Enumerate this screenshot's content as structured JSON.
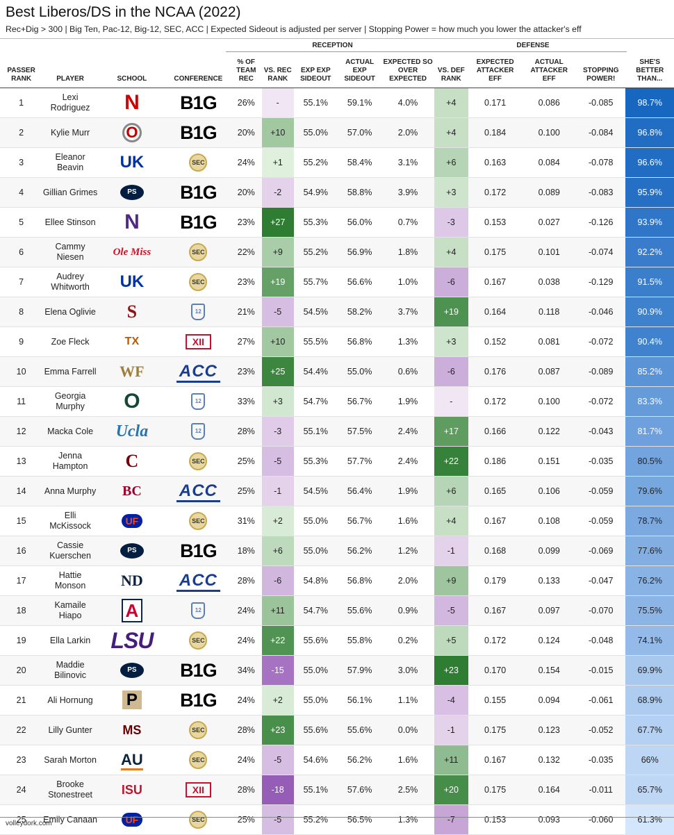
{
  "title": "Best Liberos/DS in the NCAA (2022)",
  "subtitle": "Rec+Dig > 300 | Big Ten, Pac-12, Big-12, SEC, ACC | Expected Sideout is adjusted per server | Stopping Power = how much you lower the attacker's eff",
  "footer": "volleydork.com",
  "groups": {
    "reception": "RECEPTION",
    "defense": "DEFENSE"
  },
  "colors": {
    "green_dark": "#2e7d32",
    "purple_dark": "#6a1b9a",
    "blue_dark": "#1565c0",
    "blue_light": "#dbeafe"
  },
  "chart_data": {
    "type": "table",
    "columns": [
      "PASSER RANK",
      "PLAYER",
      "SCHOOL",
      "CONFERENCE",
      "% OF TEAM REC",
      "VS. REC RANK",
      "EXP EXP SIDEOUT",
      "ACTUAL EXP SIDEOUT",
      "EXPECTED SO OVER EXPECTED",
      "VS. DEF RANK",
      "EXPECTED ATTACKER EFF",
      "ACTUAL ATTACKER EFF",
      "STOPPING POWER!",
      "SHE'S BETTER THAN..."
    ],
    "rows": [
      {
        "rank": "1",
        "player": "Lexi Rodriguez",
        "school": "nebraska-logo",
        "conf": "big10",
        "pct": "26%",
        "vsrec": "-",
        "expexp": "55.1%",
        "actexp": "59.1%",
        "soe": "4.0%",
        "vsdef": "+4",
        "expatt": "0.171",
        "actatt": "0.086",
        "stop": "-0.085",
        "better": "98.7%"
      },
      {
        "rank": "2",
        "player": "Kylie Murr",
        "school": "ohio-state-logo",
        "conf": "big10",
        "pct": "20%",
        "vsrec": "+10",
        "expexp": "55.0%",
        "actexp": "57.0%",
        "soe": "2.0%",
        "vsdef": "+4",
        "expatt": "0.184",
        "actatt": "0.100",
        "stop": "-0.084",
        "better": "96.8%"
      },
      {
        "rank": "3",
        "player": "Eleanor Beavin",
        "school": "kentucky-logo",
        "conf": "sec",
        "pct": "24%",
        "vsrec": "+1",
        "expexp": "55.2%",
        "actexp": "58.4%",
        "soe": "3.1%",
        "vsdef": "+6",
        "expatt": "0.163",
        "actatt": "0.084",
        "stop": "-0.078",
        "better": "96.6%"
      },
      {
        "rank": "4",
        "player": "Gillian Grimes",
        "school": "penn-state-logo",
        "conf": "big10",
        "pct": "20%",
        "vsrec": "-2",
        "expexp": "54.9%",
        "actexp": "58.8%",
        "soe": "3.9%",
        "vsdef": "+3",
        "expatt": "0.172",
        "actatt": "0.089",
        "stop": "-0.083",
        "better": "95.9%"
      },
      {
        "rank": "5",
        "player": "Ellee Stinson",
        "school": "northwestern-logo",
        "conf": "big10",
        "pct": "23%",
        "vsrec": "+27",
        "expexp": "55.3%",
        "actexp": "56.0%",
        "soe": "0.7%",
        "vsdef": "-3",
        "expatt": "0.153",
        "actatt": "0.027",
        "stop": "-0.126",
        "better": "93.9%"
      },
      {
        "rank": "6",
        "player": "Cammy Niesen",
        "school": "ole-miss-logo",
        "conf": "sec",
        "pct": "22%",
        "vsrec": "+9",
        "expexp": "55.2%",
        "actexp": "56.9%",
        "soe": "1.8%",
        "vsdef": "+4",
        "expatt": "0.175",
        "actatt": "0.101",
        "stop": "-0.074",
        "better": "92.2%"
      },
      {
        "rank": "7",
        "player": "Audrey Whitworth",
        "school": "kentucky-logo",
        "conf": "sec",
        "pct": "23%",
        "vsrec": "+19",
        "expexp": "55.7%",
        "actexp": "56.6%",
        "soe": "1.0%",
        "vsdef": "-6",
        "expatt": "0.167",
        "actatt": "0.038",
        "stop": "-0.129",
        "better": "91.5%"
      },
      {
        "rank": "8",
        "player": "Elena Oglivie",
        "school": "stanford-logo",
        "conf": "pac12",
        "pct": "21%",
        "vsrec": "-5",
        "expexp": "54.5%",
        "actexp": "58.2%",
        "soe": "3.7%",
        "vsdef": "+19",
        "expatt": "0.164",
        "actatt": "0.118",
        "stop": "-0.046",
        "better": "90.9%"
      },
      {
        "rank": "9",
        "player": "Zoe Fleck",
        "school": "texas-logo",
        "conf": "big12",
        "pct": "27%",
        "vsrec": "+10",
        "expexp": "55.5%",
        "actexp": "56.8%",
        "soe": "1.3%",
        "vsdef": "+3",
        "expatt": "0.152",
        "actatt": "0.081",
        "stop": "-0.072",
        "better": "90.4%"
      },
      {
        "rank": "10",
        "player": "Emma Farrell",
        "school": "wake-forest-logo",
        "conf": "acc",
        "pct": "23%",
        "vsrec": "+25",
        "expexp": "54.4%",
        "actexp": "55.0%",
        "soe": "0.6%",
        "vsdef": "-6",
        "expatt": "0.176",
        "actatt": "0.087",
        "stop": "-0.089",
        "better": "85.2%"
      },
      {
        "rank": "11",
        "player": "Georgia Murphy",
        "school": "oregon-logo",
        "conf": "pac12",
        "pct": "33%",
        "vsrec": "+3",
        "expexp": "54.7%",
        "actexp": "56.7%",
        "soe": "1.9%",
        "vsdef": "-",
        "expatt": "0.172",
        "actatt": "0.100",
        "stop": "-0.072",
        "better": "83.3%"
      },
      {
        "rank": "12",
        "player": "Macka Cole",
        "school": "ucla-logo",
        "conf": "pac12",
        "pct": "28%",
        "vsrec": "-3",
        "expexp": "55.1%",
        "actexp": "57.5%",
        "soe": "2.4%",
        "vsdef": "+17",
        "expatt": "0.166",
        "actatt": "0.122",
        "stop": "-0.043",
        "better": "81.7%"
      },
      {
        "rank": "13",
        "player": "Jenna Hampton",
        "school": "south-carolina-logo",
        "conf": "sec",
        "pct": "25%",
        "vsrec": "-5",
        "expexp": "55.3%",
        "actexp": "57.7%",
        "soe": "2.4%",
        "vsdef": "+22",
        "expatt": "0.186",
        "actatt": "0.151",
        "stop": "-0.035",
        "better": "80.5%"
      },
      {
        "rank": "14",
        "player": "Anna Murphy",
        "school": "boston-college-logo",
        "conf": "acc",
        "pct": "25%",
        "vsrec": "-1",
        "expexp": "54.5%",
        "actexp": "56.4%",
        "soe": "1.9%",
        "vsdef": "+6",
        "expatt": "0.165",
        "actatt": "0.106",
        "stop": "-0.059",
        "better": "79.6%"
      },
      {
        "rank": "15",
        "player": "Elli McKissock",
        "school": "florida-logo",
        "conf": "sec",
        "pct": "31%",
        "vsrec": "+2",
        "expexp": "55.0%",
        "actexp": "56.7%",
        "soe": "1.6%",
        "vsdef": "+4",
        "expatt": "0.167",
        "actatt": "0.108",
        "stop": "-0.059",
        "better": "78.7%"
      },
      {
        "rank": "16",
        "player": "Cassie Kuerschen",
        "school": "penn-state-logo",
        "conf": "big10",
        "pct": "18%",
        "vsrec": "+6",
        "expexp": "55.0%",
        "actexp": "56.2%",
        "soe": "1.2%",
        "vsdef": "-1",
        "expatt": "0.168",
        "actatt": "0.099",
        "stop": "-0.069",
        "better": "77.6%"
      },
      {
        "rank": "17",
        "player": "Hattie Monson",
        "school": "notre-dame-logo",
        "conf": "acc",
        "pct": "28%",
        "vsrec": "-6",
        "expexp": "54.8%",
        "actexp": "56.8%",
        "soe": "2.0%",
        "vsdef": "+9",
        "expatt": "0.179",
        "actatt": "0.133",
        "stop": "-0.047",
        "better": "76.2%"
      },
      {
        "rank": "18",
        "player": "Kamaile Hiapo",
        "school": "arizona-logo",
        "conf": "pac12",
        "pct": "24%",
        "vsrec": "+11",
        "expexp": "54.7%",
        "actexp": "55.6%",
        "soe": "0.9%",
        "vsdef": "-5",
        "expatt": "0.167",
        "actatt": "0.097",
        "stop": "-0.070",
        "better": "75.5%"
      },
      {
        "rank": "19",
        "player": "Ella Larkin",
        "school": "lsu-logo",
        "conf": "sec",
        "pct": "24%",
        "vsrec": "+22",
        "expexp": "55.6%",
        "actexp": "55.8%",
        "soe": "0.2%",
        "vsdef": "+5",
        "expatt": "0.172",
        "actatt": "0.124",
        "stop": "-0.048",
        "better": "74.1%"
      },
      {
        "rank": "20",
        "player": "Maddie Bilinovic",
        "school": "penn-state-logo",
        "conf": "big10",
        "pct": "34%",
        "vsrec": "-15",
        "expexp": "55.0%",
        "actexp": "57.9%",
        "soe": "3.0%",
        "vsdef": "+23",
        "expatt": "0.170",
        "actatt": "0.154",
        "stop": "-0.015",
        "better": "69.9%"
      },
      {
        "rank": "21",
        "player": "Ali Hornung",
        "school": "purdue-logo",
        "conf": "big10",
        "pct": "24%",
        "vsrec": "+2",
        "expexp": "55.0%",
        "actexp": "56.1%",
        "soe": "1.1%",
        "vsdef": "-4",
        "expatt": "0.155",
        "actatt": "0.094",
        "stop": "-0.061",
        "better": "68.9%"
      },
      {
        "rank": "22",
        "player": "Lilly Gunter",
        "school": "mississippi-state-logo",
        "conf": "sec",
        "pct": "28%",
        "vsrec": "+23",
        "expexp": "55.6%",
        "actexp": "55.6%",
        "soe": "0.0%",
        "vsdef": "-1",
        "expatt": "0.175",
        "actatt": "0.123",
        "stop": "-0.052",
        "better": "67.7%"
      },
      {
        "rank": "23",
        "player": "Sarah Morton",
        "school": "auburn-logo",
        "conf": "sec",
        "pct": "24%",
        "vsrec": "-5",
        "expexp": "54.6%",
        "actexp": "56.2%",
        "soe": "1.6%",
        "vsdef": "+11",
        "expatt": "0.167",
        "actatt": "0.132",
        "stop": "-0.035",
        "better": "66%"
      },
      {
        "rank": "24",
        "player": "Brooke Stonestreet",
        "school": "iowa-state-logo",
        "conf": "big12",
        "pct": "28%",
        "vsrec": "-18",
        "expexp": "55.1%",
        "actexp": "57.6%",
        "soe": "2.5%",
        "vsdef": "+20",
        "expatt": "0.175",
        "actatt": "0.164",
        "stop": "-0.011",
        "better": "65.7%"
      },
      {
        "rank": "25",
        "player": "Emily Canaan",
        "school": "florida-logo",
        "conf": "sec",
        "pct": "25%",
        "vsrec": "-5",
        "expexp": "55.2%",
        "actexp": "56.5%",
        "soe": "1.3%",
        "vsdef": "-7",
        "expatt": "0.153",
        "actatt": "0.093",
        "stop": "-0.060",
        "better": "61.3%"
      }
    ]
  },
  "logo_text": {
    "big10": "B1G",
    "sec": "SEC",
    "pac12": "12",
    "acc": "ACC",
    "big12": "XII",
    "nebraska-logo": "N",
    "ohio-state-logo": "O",
    "kentucky-logo": "UK",
    "penn-state-logo": "PS",
    "northwestern-logo": "N",
    "ole-miss-logo": "Ole Miss",
    "stanford-logo": "S",
    "texas-logo": "TX",
    "wake-forest-logo": "WF",
    "oregon-logo": "O",
    "ucla-logo": "Ucla",
    "south-carolina-logo": "C",
    "boston-college-logo": "BC",
    "florida-logo": "UF",
    "notre-dame-logo": "ND",
    "arizona-logo": "A",
    "lsu-logo": "LSU",
    "purdue-logo": "P",
    "mississippi-state-logo": "MS",
    "auburn-logo": "AU",
    "iowa-state-logo": "ISU"
  }
}
